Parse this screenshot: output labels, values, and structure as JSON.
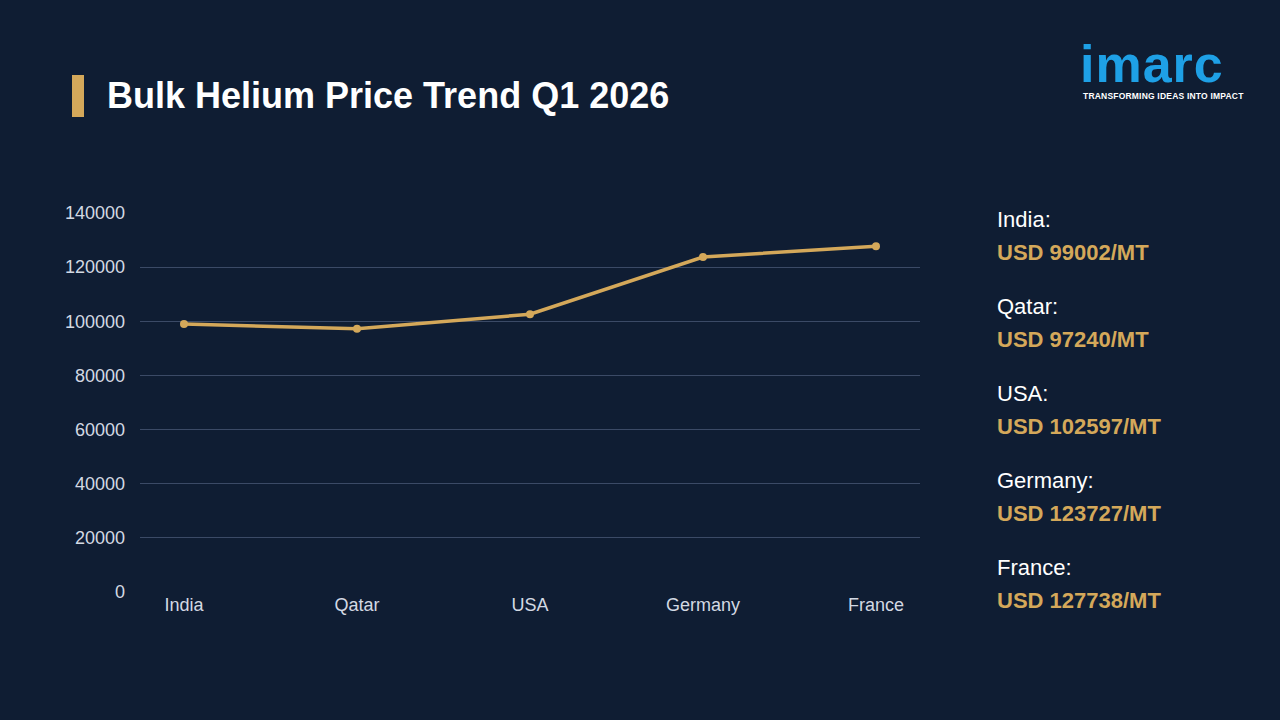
{
  "chart_data": {
    "type": "line",
    "title": "Bulk Helium Price Trend Q1 2026",
    "categories": [
      "India",
      "Qatar",
      "USA",
      "Germany",
      "France"
    ],
    "values": [
      99002,
      97240,
      102597,
      123727,
      127738
    ],
    "value_labels": [
      "USD 99002/MT",
      "USD 97240/MT",
      "USD 102597/MT",
      "USD 123727/MT",
      "USD 127738/MT"
    ],
    "panel_labels": [
      "India:",
      "Qatar:",
      "USA:",
      "Germany:",
      "France:"
    ],
    "color": "#d4a85a",
    "marker": "circle",
    "ylim": [
      0,
      140000
    ],
    "yticks": [
      0,
      20000,
      40000,
      60000,
      80000,
      100000,
      120000,
      140000
    ],
    "grid": true
  },
  "logo": {
    "text": "imarc",
    "tagline": "TRANSFORMING IDEAS INTO IMPACT"
  }
}
